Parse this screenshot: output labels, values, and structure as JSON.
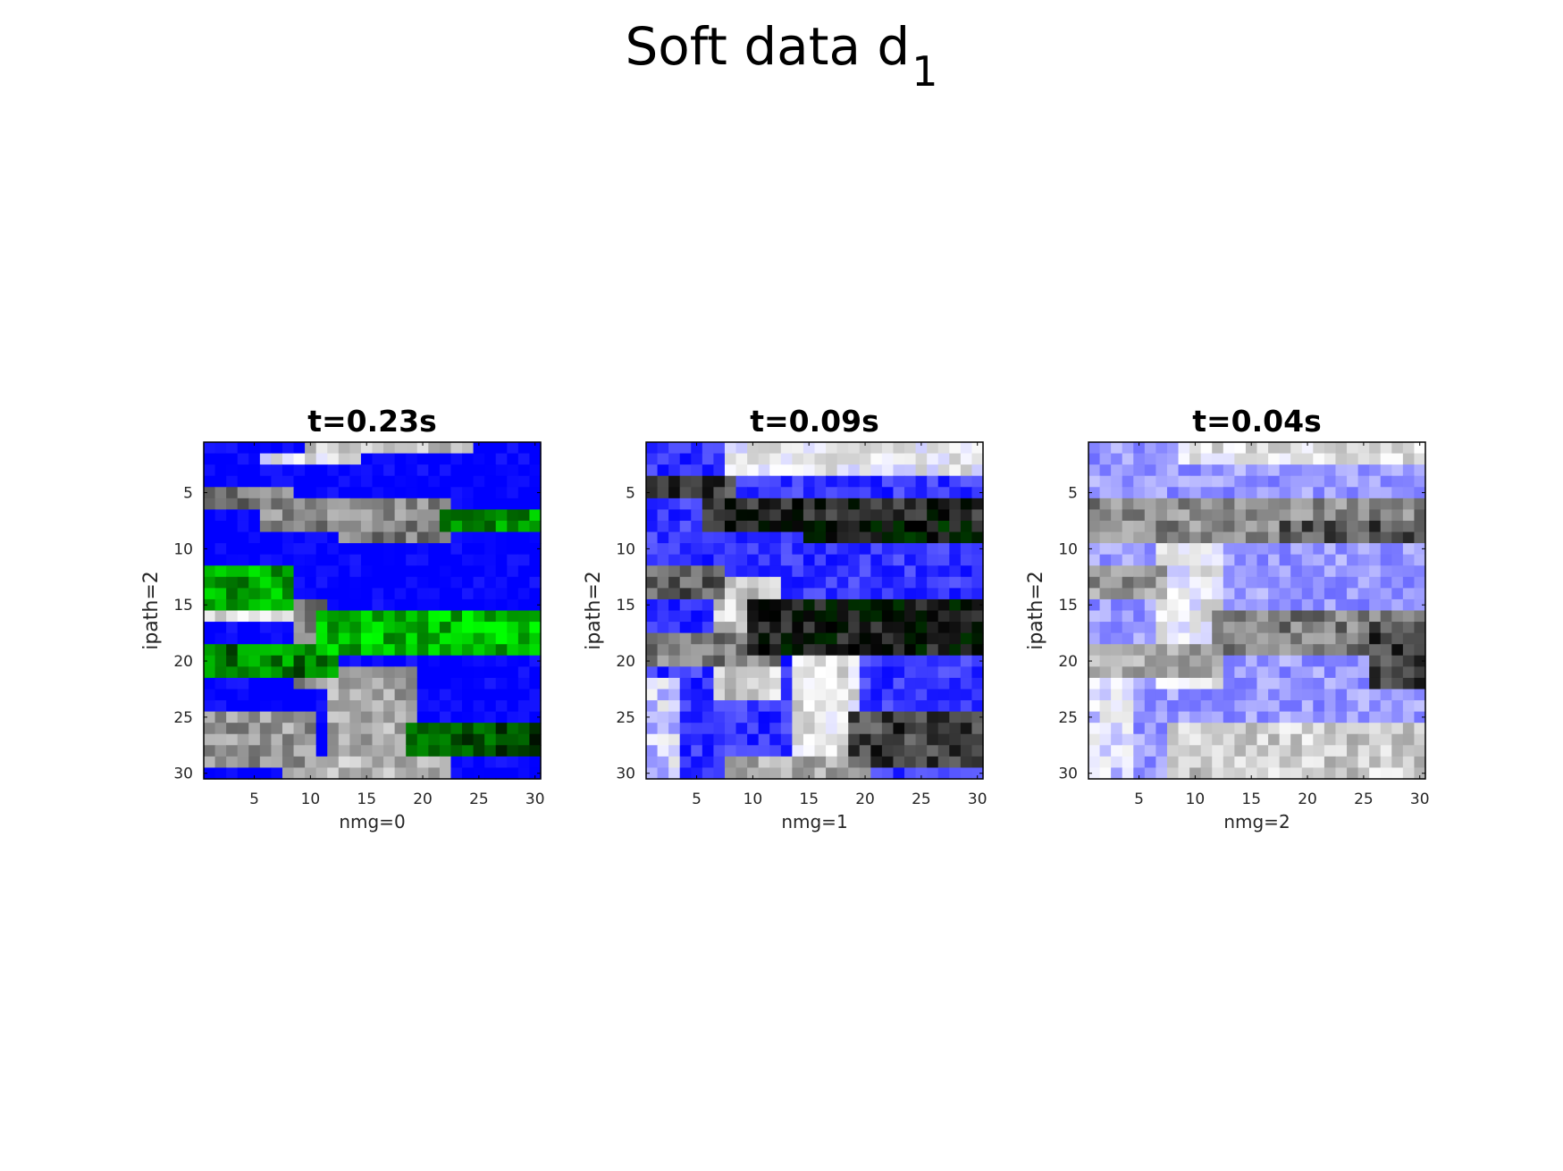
{
  "figure_title": {
    "main": "Soft data d",
    "subscript": "1"
  },
  "colors": {
    "blue": "#0000ff",
    "white": "#ffffff",
    "gray": "#808080",
    "black": "#000000",
    "green": "#00ff00",
    "axis": "#000000",
    "text": "#262626"
  },
  "chart_data": [
    {
      "type": "heatmap",
      "title": "t=0.23s",
      "xlabel": "nmg=0",
      "ylabel": "ipath=2",
      "x_ticks": [
        5,
        10,
        15,
        20,
        25,
        30
      ],
      "y_ticks": [
        5,
        10,
        15,
        20,
        25,
        30
      ],
      "xlim": [
        0.5,
        30.5
      ],
      "ylim": [
        0.5,
        30.5
      ],
      "y_direction": "reverse",
      "grid": false,
      "n_rows": 30,
      "n_cols": 30,
      "bands": [
        {
          "row_start": 1,
          "row_end": 30,
          "col_start": 1,
          "col_end": 30,
          "value": 0.0,
          "type": "fill"
        },
        {
          "row_start": 1,
          "row_end": 1,
          "col_start": 10,
          "col_end": 24,
          "value": 0.75,
          "type": "line"
        },
        {
          "row_start": 2,
          "row_end": 2,
          "col_start": 6,
          "col_end": 14,
          "value": 0.55,
          "type": "line"
        },
        {
          "row_start": 5,
          "row_end": 6,
          "col_start": 1,
          "col_end": 8,
          "value": 1.0,
          "type": "line"
        },
        {
          "row_start": 6,
          "row_end": 8,
          "col_start": 6,
          "col_end": 22,
          "value": 0.95,
          "type": "line"
        },
        {
          "row_start": 7,
          "row_end": 8,
          "col_start": 22,
          "col_end": 30,
          "value": 1.75,
          "type": "line"
        },
        {
          "row_start": 8,
          "row_end": 9,
          "col_start": 13,
          "col_end": 22,
          "value": 1.0,
          "type": "line"
        },
        {
          "row_start": 12,
          "row_end": 15,
          "col_start": 1,
          "col_end": 8,
          "value": 1.8,
          "type": "line"
        },
        {
          "row_start": 15,
          "row_end": 15,
          "col_start": 7,
          "col_end": 11,
          "value": 1.0,
          "type": "line"
        },
        {
          "row_start": 16,
          "row_end": 19,
          "col_start": 11,
          "col_end": 30,
          "value": 1.85,
          "type": "line"
        },
        {
          "row_start": 16,
          "row_end": 16,
          "col_start": 1,
          "col_end": 9,
          "value": 0.6,
          "type": "line"
        },
        {
          "row_start": 19,
          "row_end": 21,
          "col_start": 1,
          "col_end": 12,
          "value": 1.7,
          "type": "line"
        },
        {
          "row_start": 15,
          "row_end": 22,
          "col_start": 9,
          "col_end": 11,
          "value": 1.0,
          "type": "line"
        },
        {
          "row_start": 21,
          "row_end": 28,
          "col_start": 12,
          "col_end": 19,
          "value": 0.85,
          "type": "line"
        },
        {
          "row_start": 25,
          "row_end": 29,
          "col_start": 1,
          "col_end": 10,
          "value": 0.9,
          "type": "line"
        },
        {
          "row_start": 26,
          "row_end": 28,
          "col_start": 19,
          "col_end": 30,
          "value": 1.6,
          "type": "line"
        },
        {
          "row_start": 29,
          "row_end": 30,
          "col_start": 8,
          "col_end": 22,
          "value": 0.8,
          "type": "line"
        }
      ]
    },
    {
      "type": "heatmap",
      "title": "t=0.09s",
      "xlabel": "nmg=1",
      "ylabel": "ipath=2",
      "x_ticks": [
        5,
        10,
        15,
        20,
        25,
        30
      ],
      "y_ticks": [
        5,
        10,
        15,
        20,
        25,
        30
      ],
      "xlim": [
        0.5,
        30.5
      ],
      "ylim": [
        0.5,
        30.5
      ],
      "y_direction": "reverse",
      "grid": false,
      "n_rows": 30,
      "n_cols": 30,
      "bands": [
        {
          "row_start": 1,
          "row_end": 30,
          "col_start": 1,
          "col_end": 30,
          "value": 0.1,
          "type": "fill"
        },
        {
          "row_start": 1,
          "row_end": 3,
          "col_start": 8,
          "col_end": 30,
          "value": 0.55,
          "type": "line"
        },
        {
          "row_start": 4,
          "row_end": 5,
          "col_start": 1,
          "col_end": 8,
          "value": 1.2,
          "type": "line"
        },
        {
          "row_start": 6,
          "row_end": 8,
          "col_start": 6,
          "col_end": 30,
          "value": 1.3,
          "type": "line"
        },
        {
          "row_start": 8,
          "row_end": 9,
          "col_start": 15,
          "col_end": 30,
          "value": 1.4,
          "type": "line"
        },
        {
          "row_start": 12,
          "row_end": 14,
          "col_start": 1,
          "col_end": 7,
          "value": 1.1,
          "type": "line"
        },
        {
          "row_start": 15,
          "row_end": 19,
          "col_start": 10,
          "col_end": 30,
          "value": 1.35,
          "type": "line"
        },
        {
          "row_start": 18,
          "row_end": 20,
          "col_start": 1,
          "col_end": 12,
          "value": 1.0,
          "type": "line"
        },
        {
          "row_start": 13,
          "row_end": 23,
          "col_start": 7,
          "col_end": 12,
          "value": 0.7,
          "type": "line"
        },
        {
          "row_start": 20,
          "row_end": 28,
          "col_start": 14,
          "col_end": 19,
          "value": 0.6,
          "type": "line"
        },
        {
          "row_start": 25,
          "row_end": 29,
          "col_start": 19,
          "col_end": 30,
          "value": 1.2,
          "type": "line"
        },
        {
          "row_start": 29,
          "row_end": 30,
          "col_start": 8,
          "col_end": 20,
          "value": 0.85,
          "type": "line"
        },
        {
          "row_start": 22,
          "row_end": 30,
          "col_start": 1,
          "col_end": 3,
          "value": 0.45,
          "type": "line"
        }
      ]
    },
    {
      "type": "heatmap",
      "title": "t=0.04s",
      "xlabel": "nmg=2",
      "ylabel": "ipath=2",
      "x_ticks": [
        5,
        10,
        15,
        20,
        25,
        30
      ],
      "y_ticks": [
        5,
        10,
        15,
        20,
        25,
        30
      ],
      "xlim": [
        0.5,
        30.5
      ],
      "ylim": [
        0.5,
        30.5
      ],
      "y_direction": "reverse",
      "grid": false,
      "n_rows": 30,
      "n_cols": 30,
      "bands": [
        {
          "row_start": 1,
          "row_end": 30,
          "col_start": 1,
          "col_end": 30,
          "value": 0.3,
          "type": "fill"
        },
        {
          "row_start": 1,
          "row_end": 2,
          "col_start": 9,
          "col_end": 30,
          "value": 0.6,
          "type": "line"
        },
        {
          "row_start": 6,
          "row_end": 9,
          "col_start": 1,
          "col_end": 30,
          "value": 0.95,
          "type": "line"
        },
        {
          "row_start": 8,
          "row_end": 9,
          "col_start": 18,
          "col_end": 30,
          "value": 1.15,
          "type": "line"
        },
        {
          "row_start": 12,
          "row_end": 14,
          "col_start": 1,
          "col_end": 7,
          "value": 0.9,
          "type": "line"
        },
        {
          "row_start": 10,
          "row_end": 22,
          "col_start": 7,
          "col_end": 12,
          "value": 0.55,
          "type": "line"
        },
        {
          "row_start": 16,
          "row_end": 19,
          "col_start": 12,
          "col_end": 30,
          "value": 1.0,
          "type": "line"
        },
        {
          "row_start": 19,
          "row_end": 21,
          "col_start": 1,
          "col_end": 12,
          "value": 0.85,
          "type": "line"
        },
        {
          "row_start": 17,
          "row_end": 22,
          "col_start": 26,
          "col_end": 30,
          "value": 1.2,
          "type": "line"
        },
        {
          "row_start": 26,
          "row_end": 30,
          "col_start": 8,
          "col_end": 30,
          "value": 0.7,
          "type": "line"
        },
        {
          "row_start": 22,
          "row_end": 30,
          "col_start": 1,
          "col_end": 4,
          "value": 0.45,
          "type": "line"
        }
      ]
    }
  ]
}
